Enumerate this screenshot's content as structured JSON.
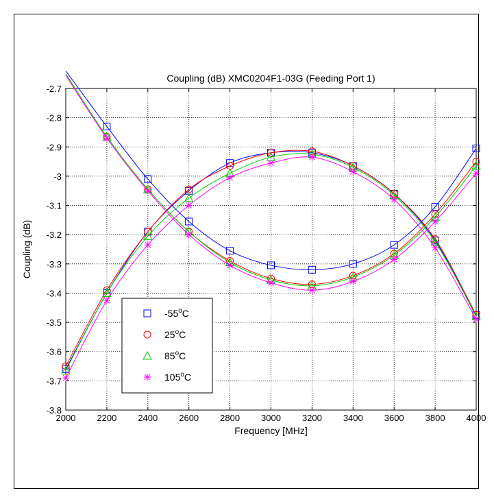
{
  "chart_data": {
    "type": "line",
    "title": "Coupling (dB) XMC0204F1-03G (Feeding Port 1)",
    "xlabel": "Frequency [MHz]",
    "ylabel": "Coupling (dB)",
    "xlim": [
      2000,
      4000
    ],
    "ylim": [
      -3.8,
      -2.7
    ],
    "xticks": [
      2000,
      2200,
      2400,
      2600,
      2800,
      3000,
      3200,
      3400,
      3600,
      3800,
      4000
    ],
    "yticks": [
      -2.7,
      -2.8,
      -2.9,
      -3,
      -3.1,
      -3.2,
      -3.3,
      -3.4,
      -3.5,
      -3.6,
      -3.7,
      -3.8
    ],
    "grid": true,
    "legend_position": "lower-left",
    "x": [
      2000,
      2200,
      2400,
      2600,
      2800,
      3000,
      3200,
      3400,
      3600,
      3800,
      4000
    ],
    "series": [
      {
        "name": "-55",
        "color": "#0000ff",
        "marker": "square",
        "curve_a": [
          -3.66,
          -3.4,
          -3.19,
          -3.05,
          -2.955,
          -2.92,
          -2.92,
          -2.965,
          -3.06,
          -3.22,
          -3.475
        ],
        "curve_b": [
          -2.64,
          -2.83,
          -3.01,
          -3.155,
          -3.255,
          -3.305,
          -3.32,
          -3.3,
          -3.235,
          -3.105,
          -2.905
        ]
      },
      {
        "name": "25",
        "color": "#ff0000",
        "marker": "circle",
        "curve_a": [
          -3.65,
          -3.39,
          -3.19,
          -3.045,
          -2.965,
          -2.92,
          -2.915,
          -2.965,
          -3.06,
          -3.215,
          -3.475
        ],
        "curve_b": [
          -2.65,
          -2.865,
          -3.045,
          -3.19,
          -3.29,
          -3.35,
          -3.37,
          -3.34,
          -3.265,
          -3.13,
          -2.95
        ]
      },
      {
        "name": "85",
        "color": "#00cc00",
        "marker": "triangle",
        "curve_a": [
          -3.665,
          -3.4,
          -3.205,
          -3.075,
          -2.99,
          -2.935,
          -2.925,
          -2.97,
          -3.065,
          -3.225,
          -3.48
        ],
        "curve_b": [
          -2.65,
          -2.865,
          -3.045,
          -3.19,
          -3.295,
          -3.355,
          -3.375,
          -3.345,
          -3.27,
          -3.14,
          -2.965
        ]
      },
      {
        "name": "105",
        "color": "#ff00ff",
        "marker": "star",
        "curve_a": [
          -3.69,
          -3.425,
          -3.235,
          -3.1,
          -3.005,
          -2.955,
          -2.935,
          -2.985,
          -3.08,
          -3.245,
          -3.49
        ],
        "curve_b": [
          -2.655,
          -2.87,
          -3.05,
          -3.2,
          -3.305,
          -3.365,
          -3.39,
          -3.36,
          -3.285,
          -3.155,
          -2.99
        ]
      }
    ],
    "legend": {
      "entries": [
        {
          "label": "-55",
          "sup": "o",
          "unit": "C"
        },
        {
          "label": "25",
          "sup": "o",
          "unit": "C"
        },
        {
          "label": "85",
          "sup": "o",
          "unit": "C"
        },
        {
          "label": "105",
          "sup": "o",
          "unit": "C"
        }
      ]
    }
  }
}
